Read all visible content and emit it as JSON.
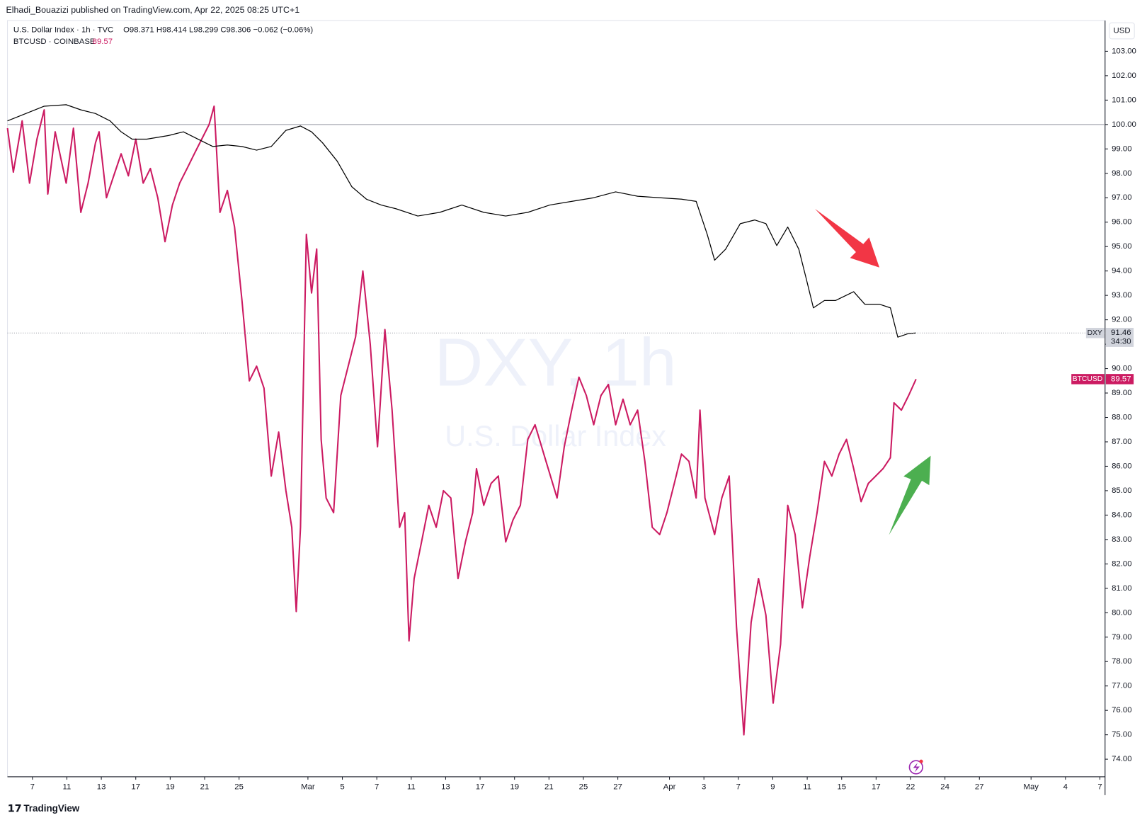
{
  "chart_data": {
    "type": "line",
    "attribution": "Elhadi_Bouazizi published on TradingView.com, Apr 22, 2025 08:25 UTC+1",
    "legend_main": {
      "name": "U.S. Dollar Index · 1h · TVC",
      "ohlc": "O98.371  H98.414  L98.299  C98.306  −0.062 (−0.06%)"
    },
    "legend_compare": "BTCUSD · COINBASE",
    "watermark": [
      "DXY, 1h",
      "U.S. Dollar Index"
    ],
    "currency": "USD",
    "countdown": "34:30",
    "footer": "TradingView",
    "hline": 100,
    "series": [
      {
        "name": "DXY",
        "color": "#000000",
        "x": [
          -1.45,
          -0.38,
          0.68,
          1.96,
          2.81,
          3.66,
          4.51,
          5.15,
          5.79,
          6.64,
          7.91,
          8.77,
          9.62,
          10.47,
          11.32,
          12.17,
          13.02,
          13.87,
          14.72,
          15.57,
          16.21,
          16.85,
          17.7,
          18.55,
          19.4,
          20.26,
          21.11,
          22.38,
          23.66,
          24.94,
          26.21,
          27.49,
          28.77,
          30.04,
          31.32,
          32.6,
          33.87,
          35.15,
          36.43,
          37.7,
          38.55,
          39.19,
          39.62,
          40.26,
          41.11,
          41.96,
          42.6,
          43.23,
          43.87,
          44.51,
          44.94,
          45.36,
          46.0,
          46.64,
          47.7,
          48.34,
          49.19,
          49.83,
          50.26,
          50.89,
          51.32
        ],
        "values": [
          100.15,
          100.45,
          100.75,
          100.81,
          100.6,
          100.45,
          100.15,
          99.7,
          99.4,
          99.4,
          99.55,
          99.7,
          99.4,
          99.1,
          99.16,
          99.1,
          98.95,
          99.1,
          99.76,
          99.94,
          99.7,
          99.25,
          98.5,
          97.45,
          96.94,
          96.7,
          96.55,
          96.25,
          96.4,
          96.7,
          96.4,
          96.25,
          96.4,
          96.7,
          96.85,
          97.0,
          97.24,
          97.06,
          97.0,
          96.94,
          96.85,
          95.5,
          94.44,
          94.89,
          95.94,
          96.09,
          95.94,
          95.04,
          95.8,
          94.89,
          93.69,
          92.49,
          92.79,
          92.79,
          93.15,
          92.64,
          92.64,
          92.49,
          91.29,
          91.44,
          91.46
        ]
      },
      {
        "name": "BTCUSD",
        "color": "#cc1b62",
        "x": [
          -1.45,
          -1.11,
          -0.6,
          -0.17,
          0.26,
          0.68,
          0.89,
          1.32,
          1.96,
          2.38,
          2.81,
          3.23,
          3.66,
          3.87,
          4.3,
          4.72,
          5.15,
          5.57,
          6.0,
          6.43,
          6.85,
          7.28,
          7.7,
          8.13,
          8.55,
          8.98,
          9.4,
          9.83,
          10.26,
          10.55,
          10.89,
          11.32,
          11.74,
          12.17,
          12.6,
          13.02,
          13.45,
          13.87,
          14.3,
          14.72,
          15.06,
          15.32,
          15.57,
          15.91,
          16.21,
          16.51,
          16.77,
          17.06,
          17.49,
          17.91,
          18.34,
          18.77,
          19.19,
          19.62,
          20.04,
          20.47,
          20.89,
          21.32,
          21.62,
          21.87,
          22.17,
          22.6,
          23.02,
          23.45,
          23.87,
          24.3,
          24.72,
          25.15,
          25.57,
          25.79,
          26.21,
          26.64,
          27.06,
          27.49,
          27.91,
          28.34,
          28.77,
          29.19,
          29.83,
          30.47,
          30.89,
          31.32,
          31.74,
          32.17,
          32.6,
          33.02,
          33.45,
          33.87,
          34.3,
          34.72,
          35.15,
          35.57,
          36.0,
          36.43,
          36.85,
          37.28,
          37.7,
          38.13,
          38.55,
          38.77,
          39.06,
          39.62,
          40.04,
          40.47,
          40.89,
          41.32,
          41.74,
          42.17,
          42.6,
          43.02,
          43.45,
          43.87,
          44.3,
          44.72,
          45.15,
          45.57,
          46.0,
          46.43,
          46.85,
          47.28,
          47.7,
          48.13,
          48.55,
          48.98,
          49.4,
          49.83,
          50.04,
          50.47,
          50.89,
          51.32
        ],
        "values": [
          99.85,
          98.05,
          100.15,
          97.6,
          99.4,
          100.6,
          97.15,
          99.7,
          97.6,
          99.85,
          96.4,
          97.6,
          99.25,
          99.7,
          97.0,
          97.9,
          98.8,
          97.9,
          99.4,
          97.6,
          98.2,
          97.0,
          95.2,
          96.7,
          97.6,
          98.2,
          98.8,
          99.4,
          100.0,
          100.75,
          96.4,
          97.3,
          95.8,
          92.8,
          89.5,
          90.1,
          89.2,
          85.6,
          87.4,
          85.0,
          83.5,
          80.05,
          83.5,
          95.5,
          93.1,
          94.9,
          87.1,
          84.7,
          84.1,
          88.9,
          90.1,
          91.3,
          94.0,
          91.0,
          86.8,
          91.6,
          88.3,
          83.5,
          84.1,
          78.85,
          81.4,
          82.9,
          84.4,
          83.5,
          85.0,
          84.7,
          81.4,
          82.9,
          84.1,
          85.9,
          84.4,
          85.3,
          85.6,
          82.9,
          83.8,
          84.4,
          87.1,
          87.7,
          86.2,
          84.7,
          86.8,
          88.3,
          89.65,
          88.9,
          87.7,
          88.9,
          89.35,
          87.7,
          88.75,
          87.7,
          88.3,
          86.2,
          83.5,
          83.2,
          84.1,
          85.3,
          86.5,
          86.2,
          84.7,
          88.3,
          84.7,
          83.2,
          84.7,
          85.6,
          79.45,
          75.0,
          79.6,
          81.4,
          79.9,
          76.3,
          78.7,
          84.4,
          83.2,
          80.2,
          82.3,
          84.1,
          86.2,
          85.6,
          86.5,
          87.1,
          85.9,
          84.55,
          85.3,
          85.6,
          85.9,
          86.35,
          88.6,
          88.3,
          88.9,
          89.57
        ]
      }
    ],
    "xlim": [
      -1.45,
      62.3
    ],
    "xticks": [
      {
        "value": 0,
        "label": "7"
      },
      {
        "value": 2,
        "label": "11"
      },
      {
        "value": 4,
        "label": "13"
      },
      {
        "value": 6,
        "label": "17"
      },
      {
        "value": 8,
        "label": "19"
      },
      {
        "value": 10,
        "label": "21"
      },
      {
        "value": 12,
        "label": "25"
      },
      {
        "value": 16,
        "label": "Mar"
      },
      {
        "value": 18,
        "label": "5"
      },
      {
        "value": 20,
        "label": "7"
      },
      {
        "value": 22,
        "label": "11"
      },
      {
        "value": 24,
        "label": "13"
      },
      {
        "value": 26,
        "label": "17"
      },
      {
        "value": 28,
        "label": "19"
      },
      {
        "value": 30,
        "label": "21"
      },
      {
        "value": 32,
        "label": "25"
      },
      {
        "value": 34,
        "label": "27"
      },
      {
        "value": 37,
        "label": "Apr"
      },
      {
        "value": 39,
        "label": "3"
      },
      {
        "value": 41,
        "label": "7"
      },
      {
        "value": 43,
        "label": "9"
      },
      {
        "value": 45,
        "label": "11"
      },
      {
        "value": 47,
        "label": "15"
      },
      {
        "value": 49,
        "label": "17"
      },
      {
        "value": 51,
        "label": "22"
      },
      {
        "value": 53,
        "label": "24"
      },
      {
        "value": 55,
        "label": "27"
      },
      {
        "value": 58,
        "label": "May"
      },
      {
        "value": 60,
        "label": "4"
      },
      {
        "value": 62,
        "label": "7"
      }
    ],
    "ylim": [
      73.28,
      104.26
    ],
    "yticks": [
      {
        "value": 74,
        "label": "74.00"
      },
      {
        "value": 75,
        "label": "75.00"
      },
      {
        "value": 76,
        "label": "76.00"
      },
      {
        "value": 77,
        "label": "77.00"
      },
      {
        "value": 78,
        "label": "78.00"
      },
      {
        "value": 79,
        "label": "79.00"
      },
      {
        "value": 80,
        "label": "80.00"
      },
      {
        "value": 81,
        "label": "81.00"
      },
      {
        "value": 82,
        "label": "82.00"
      },
      {
        "value": 83,
        "label": "83.00"
      },
      {
        "value": 84,
        "label": "84.00"
      },
      {
        "value": 85,
        "label": "85.00"
      },
      {
        "value": 86,
        "label": "86.00"
      },
      {
        "value": 87,
        "label": "87.00"
      },
      {
        "value": 88,
        "label": "88.00"
      },
      {
        "value": 89,
        "label": "89.00"
      },
      {
        "value": 90,
        "label": "90.00"
      },
      {
        "value": 91,
        "label": "91.00"
      },
      {
        "value": 92,
        "label": "92.00"
      },
      {
        "value": 93,
        "label": "93.00"
      },
      {
        "value": 94,
        "label": "94.00"
      },
      {
        "value": 95,
        "label": "95.00"
      },
      {
        "value": 96,
        "label": "96.00"
      },
      {
        "value": 97,
        "label": "97.00"
      },
      {
        "value": 98,
        "label": "98.00"
      },
      {
        "value": 99,
        "label": "99.00"
      },
      {
        "value": 100,
        "label": "100.00"
      },
      {
        "value": 101,
        "label": "101.00"
      },
      {
        "value": 102,
        "label": "102.00"
      },
      {
        "value": 103,
        "label": "103.00"
      }
    ],
    "grid": false
  }
}
